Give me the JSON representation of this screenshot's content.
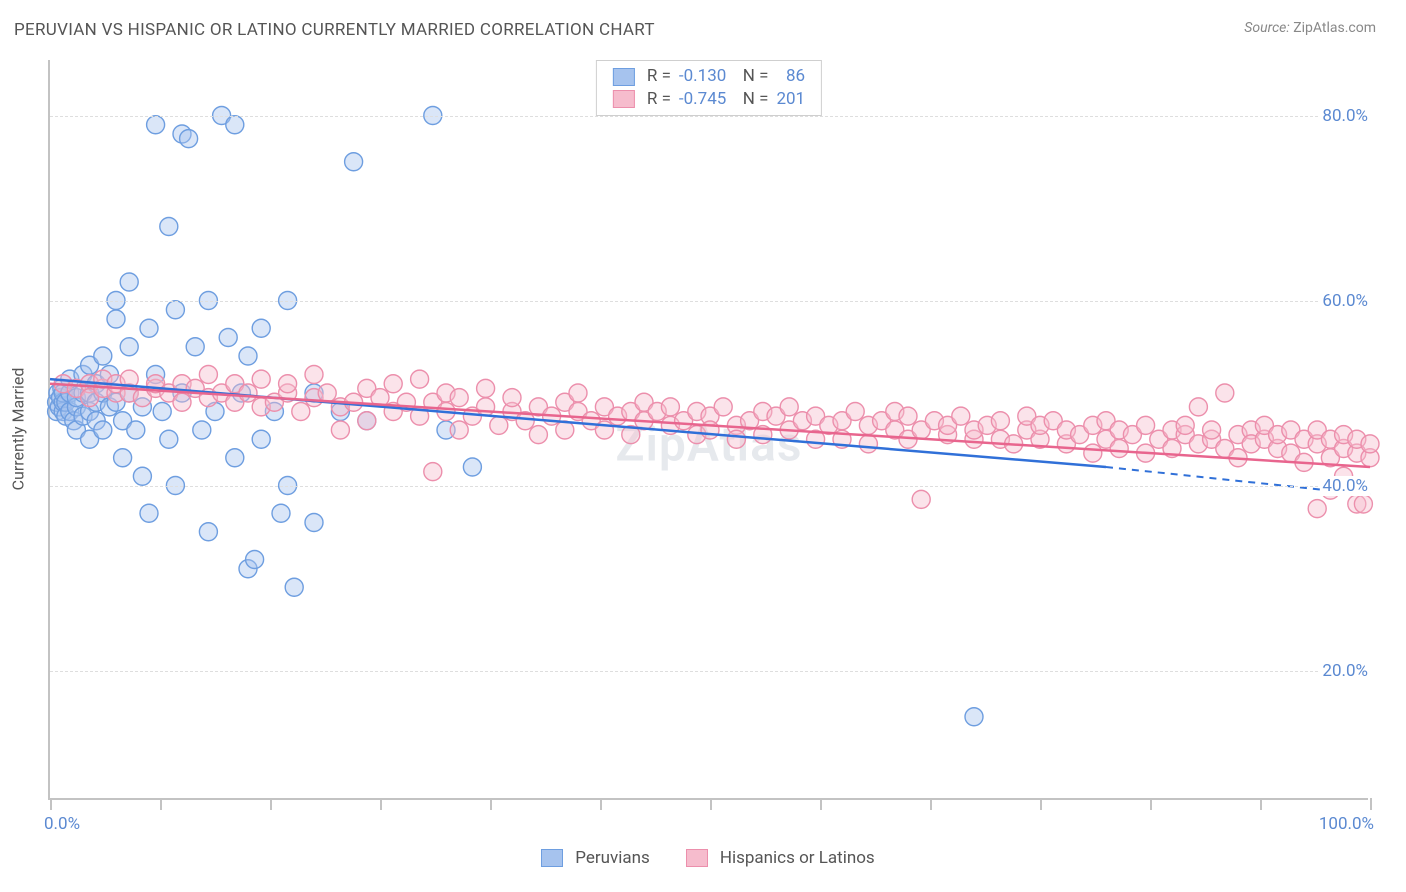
{
  "header": {
    "title": "PERUVIAN VS HISPANIC OR LATINO CURRENTLY MARRIED CORRELATION CHART",
    "source_label": "Source:",
    "source_value": "ZipAtlas.com"
  },
  "watermark": "ZipAtlas",
  "chart": {
    "type": "scatter",
    "y_axis_title": "Currently Married",
    "xlim": [
      0,
      100
    ],
    "ylim": [
      6,
      86
    ],
    "x_ticks": [
      0,
      8.33,
      16.67,
      25,
      33.33,
      41.67,
      50,
      58.33,
      66.67,
      75,
      83.33,
      91.67,
      100
    ],
    "x_range_labels": {
      "min": "0.0%",
      "max": "100.0%"
    },
    "y_gridlines": [
      20,
      40,
      60,
      80
    ],
    "y_tick_labels": {
      "20": "20.0%",
      "40": "40.0%",
      "60": "60.0%",
      "80": "80.0%"
    },
    "background_color": "#ffffff",
    "grid_color": "#dedede",
    "axis_color": "#c3c3c3",
    "marker_radius": 9,
    "marker_opacity": 0.42,
    "series": [
      {
        "key": "peruvians",
        "label": "Peruvians",
        "fill_color": "#a6c3ee",
        "stroke_color": "#6e9ee0",
        "line_color": "#3070d8",
        "r_value": "-0.130",
        "n_value": "86",
        "trend": {
          "x1": 0,
          "y1": 51.5,
          "x2_solid": 80,
          "y2_solid": 42,
          "x2": 100,
          "y2": 39
        },
        "points": [
          [
            0.5,
            48
          ],
          [
            0.5,
            49
          ],
          [
            0.6,
            50
          ],
          [
            0.7,
            48.5
          ],
          [
            0.8,
            49.5
          ],
          [
            0.9,
            50.5
          ],
          [
            1,
            48
          ],
          [
            1,
            49
          ],
          [
            1,
            50
          ],
          [
            1.2,
            47.5
          ],
          [
            1.2,
            49
          ],
          [
            1.5,
            48
          ],
          [
            1.5,
            50
          ],
          [
            1.5,
            51.5
          ],
          [
            1.8,
            47
          ],
          [
            2,
            48.5
          ],
          [
            2,
            49.5
          ],
          [
            2,
            46
          ],
          [
            2.5,
            50
          ],
          [
            2.5,
            47.5
          ],
          [
            2.5,
            52
          ],
          [
            3,
            48
          ],
          [
            3,
            50
          ],
          [
            3,
            45
          ],
          [
            3,
            53
          ],
          [
            3.5,
            47
          ],
          [
            3.5,
            49
          ],
          [
            3.5,
            51
          ],
          [
            4,
            50
          ],
          [
            4,
            46
          ],
          [
            4,
            54
          ],
          [
            4.5,
            48.5
          ],
          [
            4.5,
            52
          ],
          [
            5,
            49
          ],
          [
            5,
            58
          ],
          [
            5,
            60
          ],
          [
            5.5,
            47
          ],
          [
            5.5,
            43
          ],
          [
            6,
            50
          ],
          [
            6,
            55
          ],
          [
            6,
            62
          ],
          [
            6.5,
            46
          ],
          [
            7,
            48.5
          ],
          [
            7,
            41
          ],
          [
            7.5,
            57
          ],
          [
            7.5,
            37
          ],
          [
            8,
            52
          ],
          [
            8,
            79
          ],
          [
            8.5,
            48
          ],
          [
            9,
            45
          ],
          [
            9,
            68
          ],
          [
            9.5,
            59
          ],
          [
            9.5,
            40
          ],
          [
            10,
            50
          ],
          [
            10,
            78
          ],
          [
            10.5,
            77.5
          ],
          [
            11,
            55
          ],
          [
            11.5,
            46
          ],
          [
            12,
            35
          ],
          [
            12,
            60
          ],
          [
            12.5,
            48
          ],
          [
            13,
            80
          ],
          [
            13.5,
            56
          ],
          [
            14,
            43
          ],
          [
            14,
            79
          ],
          [
            14.5,
            50
          ],
          [
            15,
            31
          ],
          [
            15,
            54
          ],
          [
            15.5,
            32
          ],
          [
            16,
            45
          ],
          [
            16,
            57
          ],
          [
            17,
            48
          ],
          [
            17.5,
            37
          ],
          [
            18,
            40
          ],
          [
            18,
            60
          ],
          [
            18.5,
            29
          ],
          [
            20,
            36
          ],
          [
            20,
            50
          ],
          [
            22,
            48
          ],
          [
            23,
            75
          ],
          [
            24,
            47
          ],
          [
            29,
            80
          ],
          [
            30,
            46
          ],
          [
            32,
            42
          ],
          [
            70,
            15
          ]
        ]
      },
      {
        "key": "hispanics",
        "label": "Hispanics or Latinos",
        "fill_color": "#f6bccd",
        "stroke_color": "#ec8fac",
        "line_color": "#e8658e",
        "r_value": "-0.745",
        "n_value": "201",
        "trend": {
          "x1": 0,
          "y1": 51,
          "x2_solid": 100,
          "y2_solid": 42,
          "x2": 100,
          "y2": 42
        },
        "points": [
          [
            1,
            51
          ],
          [
            2,
            50.5
          ],
          [
            3,
            51
          ],
          [
            3,
            49.5
          ],
          [
            4,
            50.5
          ],
          [
            4,
            51.5
          ],
          [
            5,
            50
          ],
          [
            5,
            51
          ],
          [
            6,
            50
          ],
          [
            6,
            51.5
          ],
          [
            7,
            49.5
          ],
          [
            8,
            50.5
          ],
          [
            8,
            51
          ],
          [
            9,
            50
          ],
          [
            10,
            49
          ],
          [
            10,
            51
          ],
          [
            11,
            50.5
          ],
          [
            12,
            49.5
          ],
          [
            12,
            52
          ],
          [
            13,
            50
          ],
          [
            14,
            49
          ],
          [
            14,
            51
          ],
          [
            15,
            50
          ],
          [
            16,
            48.5
          ],
          [
            16,
            51.5
          ],
          [
            17,
            49
          ],
          [
            18,
            50
          ],
          [
            18,
            51
          ],
          [
            19,
            48
          ],
          [
            20,
            49.5
          ],
          [
            20,
            52
          ],
          [
            21,
            50
          ],
          [
            22,
            48.5
          ],
          [
            22,
            46
          ],
          [
            23,
            49
          ],
          [
            24,
            50.5
          ],
          [
            24,
            47
          ],
          [
            25,
            49.5
          ],
          [
            26,
            51
          ],
          [
            26,
            48
          ],
          [
            27,
            49
          ],
          [
            28,
            47.5
          ],
          [
            28,
            51.5
          ],
          [
            29,
            41.5
          ],
          [
            29,
            49
          ],
          [
            30,
            48
          ],
          [
            30,
            50
          ],
          [
            31,
            46
          ],
          [
            31,
            49.5
          ],
          [
            32,
            47.5
          ],
          [
            33,
            48.5
          ],
          [
            33,
            50.5
          ],
          [
            34,
            46.5
          ],
          [
            35,
            48
          ],
          [
            35,
            49.5
          ],
          [
            36,
            47
          ],
          [
            37,
            48.5
          ],
          [
            37,
            45.5
          ],
          [
            38,
            47.5
          ],
          [
            39,
            49
          ],
          [
            39,
            46
          ],
          [
            40,
            48
          ],
          [
            40,
            50
          ],
          [
            41,
            47
          ],
          [
            42,
            48.5
          ],
          [
            42,
            46
          ],
          [
            43,
            47.5
          ],
          [
            44,
            48
          ],
          [
            44,
            45.5
          ],
          [
            45,
            47
          ],
          [
            45,
            49
          ],
          [
            46,
            48
          ],
          [
            47,
            46.5
          ],
          [
            47,
            48.5
          ],
          [
            48,
            47
          ],
          [
            49,
            45.5
          ],
          [
            49,
            48
          ],
          [
            50,
            47.5
          ],
          [
            50,
            46
          ],
          [
            51,
            48.5
          ],
          [
            52,
            46.5
          ],
          [
            52,
            45
          ],
          [
            53,
            47
          ],
          [
            54,
            48
          ],
          [
            54,
            45.5
          ],
          [
            55,
            47.5
          ],
          [
            56,
            46
          ],
          [
            56,
            48.5
          ],
          [
            57,
            47
          ],
          [
            58,
            45
          ],
          [
            58,
            47.5
          ],
          [
            59,
            46.5
          ],
          [
            60,
            47
          ],
          [
            60,
            45
          ],
          [
            61,
            48
          ],
          [
            62,
            46.5
          ],
          [
            62,
            44.5
          ],
          [
            63,
            47
          ],
          [
            64,
            46
          ],
          [
            64,
            48
          ],
          [
            65,
            45
          ],
          [
            65,
            47.5
          ],
          [
            66,
            38.5
          ],
          [
            66,
            46
          ],
          [
            67,
            47
          ],
          [
            68,
            45.5
          ],
          [
            68,
            46.5
          ],
          [
            69,
            47.5
          ],
          [
            70,
            45
          ],
          [
            70,
            46
          ],
          [
            71,
            46.5
          ],
          [
            72,
            45
          ],
          [
            72,
            47
          ],
          [
            73,
            44.5
          ],
          [
            74,
            46
          ],
          [
            74,
            47.5
          ],
          [
            75,
            45
          ],
          [
            75,
            46.5
          ],
          [
            76,
            47
          ],
          [
            77,
            44.5
          ],
          [
            77,
            46
          ],
          [
            78,
            45.5
          ],
          [
            79,
            46.5
          ],
          [
            79,
            43.5
          ],
          [
            80,
            45
          ],
          [
            80,
            47
          ],
          [
            81,
            46
          ],
          [
            81,
            44
          ],
          [
            82,
            45.5
          ],
          [
            83,
            46.5
          ],
          [
            83,
            43.5
          ],
          [
            84,
            45
          ],
          [
            85,
            46
          ],
          [
            85,
            44
          ],
          [
            86,
            45.5
          ],
          [
            86,
            46.5
          ],
          [
            87,
            48.5
          ],
          [
            87,
            44.5
          ],
          [
            88,
            45
          ],
          [
            88,
            46
          ],
          [
            89,
            44
          ],
          [
            89,
            50
          ],
          [
            90,
            45.5
          ],
          [
            90,
            43
          ],
          [
            91,
            46
          ],
          [
            91,
            44.5
          ],
          [
            92,
            45
          ],
          [
            92,
            46.5
          ],
          [
            93,
            44
          ],
          [
            93,
            45.5
          ],
          [
            94,
            43.5
          ],
          [
            94,
            46
          ],
          [
            95,
            45
          ],
          [
            95,
            42.5
          ],
          [
            96,
            44.5
          ],
          [
            96,
            46
          ],
          [
            96,
            37.5
          ],
          [
            97,
            45
          ],
          [
            97,
            43
          ],
          [
            97,
            39.5
          ],
          [
            98,
            44
          ],
          [
            98,
            41
          ],
          [
            98,
            45.5
          ],
          [
            99,
            38
          ],
          [
            99,
            43.5
          ],
          [
            99,
            45
          ],
          [
            99.5,
            38
          ],
          [
            100,
            43
          ],
          [
            100,
            44.5
          ]
        ]
      }
    ]
  },
  "legend_bottom": {
    "items": [
      {
        "key": "peruvians",
        "label": "Peruvians"
      },
      {
        "key": "hispanics",
        "label": "Hispanics or Latinos"
      }
    ]
  }
}
